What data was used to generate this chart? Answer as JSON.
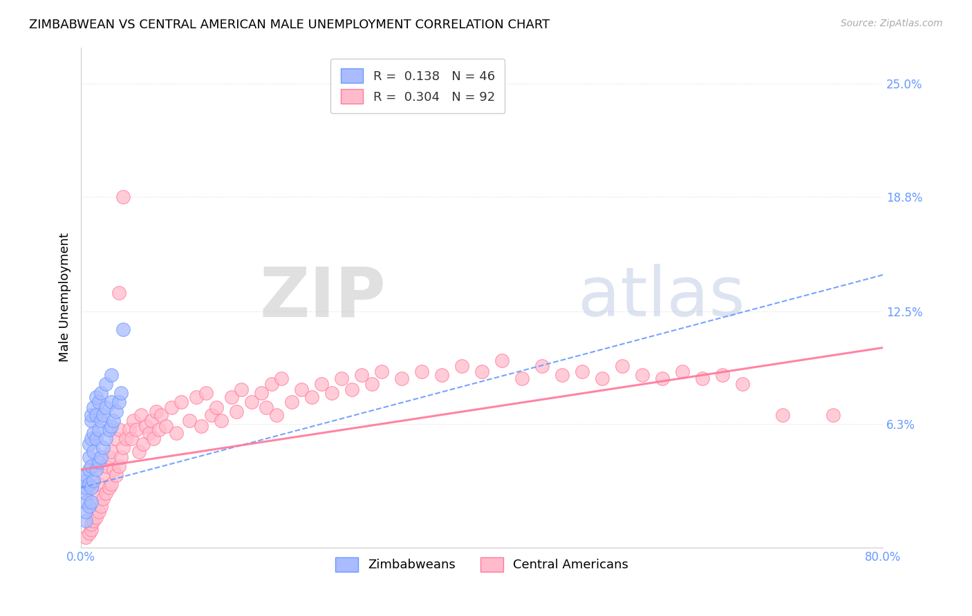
{
  "title": "ZIMBABWEAN VS CENTRAL AMERICAN MALE UNEMPLOYMENT CORRELATION CHART",
  "source_text": "Source: ZipAtlas.com",
  "ylabel": "Male Unemployment",
  "xlim": [
    0.0,
    0.8
  ],
  "ylim": [
    -0.005,
    0.27
  ],
  "yticks": [
    0.063,
    0.125,
    0.188,
    0.25
  ],
  "ytick_labels": [
    "6.3%",
    "12.5%",
    "18.8%",
    "25.0%"
  ],
  "xticks": [
    0.0,
    0.2,
    0.4,
    0.6,
    0.8
  ],
  "xtick_labels": [
    "0.0%",
    "",
    "",
    "",
    "80.0%"
  ],
  "legend_r1": "R =  0.138   N = 46",
  "legend_r2": "R =  0.304   N = 92",
  "legend_label1": "Zimbabweans",
  "legend_label2": "Central Americans",
  "blue_color": "#6699FF",
  "pink_color": "#FF7799",
  "blue_fill": "#AABBFF",
  "pink_fill": "#FFBBCC",
  "watermark_zip": "ZIP",
  "watermark_atlas": "atlas",
  "background": "#FFFFFF",
  "grid_color": "#DDDDDD",
  "zim_x": [
    0.005,
    0.005,
    0.005,
    0.005,
    0.005,
    0.005,
    0.005,
    0.008,
    0.008,
    0.008,
    0.008,
    0.008,
    0.01,
    0.01,
    0.01,
    0.01,
    0.01,
    0.01,
    0.012,
    0.012,
    0.012,
    0.012,
    0.015,
    0.015,
    0.015,
    0.015,
    0.018,
    0.018,
    0.018,
    0.02,
    0.02,
    0.02,
    0.022,
    0.022,
    0.025,
    0.025,
    0.025,
    0.028,
    0.03,
    0.03,
    0.03,
    0.032,
    0.035,
    0.038,
    0.04,
    0.042
  ],
  "zim_y": [
    0.01,
    0.015,
    0.02,
    0.025,
    0.028,
    0.032,
    0.035,
    0.018,
    0.03,
    0.038,
    0.045,
    0.052,
    0.02,
    0.028,
    0.04,
    0.055,
    0.065,
    0.068,
    0.032,
    0.048,
    0.058,
    0.072,
    0.038,
    0.055,
    0.068,
    0.078,
    0.042,
    0.06,
    0.075,
    0.045,
    0.065,
    0.08,
    0.05,
    0.068,
    0.055,
    0.072,
    0.085,
    0.06,
    0.062,
    0.075,
    0.09,
    0.065,
    0.07,
    0.075,
    0.08,
    0.115
  ],
  "ca_x": [
    0.005,
    0.008,
    0.01,
    0.01,
    0.012,
    0.015,
    0.015,
    0.018,
    0.018,
    0.02,
    0.022,
    0.022,
    0.025,
    0.025,
    0.028,
    0.028,
    0.03,
    0.03,
    0.032,
    0.035,
    0.035,
    0.038,
    0.038,
    0.04,
    0.042,
    0.045,
    0.048,
    0.05,
    0.052,
    0.055,
    0.058,
    0.06,
    0.062,
    0.065,
    0.068,
    0.07,
    0.072,
    0.075,
    0.078,
    0.08,
    0.085,
    0.09,
    0.095,
    0.1,
    0.108,
    0.115,
    0.12,
    0.125,
    0.13,
    0.135,
    0.14,
    0.15,
    0.155,
    0.16,
    0.17,
    0.18,
    0.185,
    0.19,
    0.195,
    0.2,
    0.21,
    0.22,
    0.23,
    0.24,
    0.25,
    0.26,
    0.27,
    0.28,
    0.29,
    0.3,
    0.32,
    0.34,
    0.36,
    0.38,
    0.4,
    0.42,
    0.44,
    0.46,
    0.48,
    0.5,
    0.52,
    0.54,
    0.56,
    0.58,
    0.6,
    0.62,
    0.64,
    0.66,
    0.7,
    0.75,
    0.038,
    0.042
  ],
  "ca_y": [
    0.001,
    0.003,
    0.005,
    0.008,
    0.01,
    0.012,
    0.025,
    0.015,
    0.03,
    0.018,
    0.022,
    0.035,
    0.025,
    0.04,
    0.028,
    0.045,
    0.03,
    0.048,
    0.038,
    0.035,
    0.055,
    0.04,
    0.06,
    0.045,
    0.05,
    0.055,
    0.06,
    0.055,
    0.065,
    0.06,
    0.048,
    0.068,
    0.052,
    0.062,
    0.058,
    0.065,
    0.055,
    0.07,
    0.06,
    0.068,
    0.062,
    0.072,
    0.058,
    0.075,
    0.065,
    0.078,
    0.062,
    0.08,
    0.068,
    0.072,
    0.065,
    0.078,
    0.07,
    0.082,
    0.075,
    0.08,
    0.072,
    0.085,
    0.068,
    0.088,
    0.075,
    0.082,
    0.078,
    0.085,
    0.08,
    0.088,
    0.082,
    0.09,
    0.085,
    0.092,
    0.088,
    0.092,
    0.09,
    0.095,
    0.092,
    0.098,
    0.088,
    0.095,
    0.09,
    0.092,
    0.088,
    0.095,
    0.09,
    0.088,
    0.092,
    0.088,
    0.09,
    0.085,
    0.068,
    0.068,
    0.135,
    0.188
  ]
}
